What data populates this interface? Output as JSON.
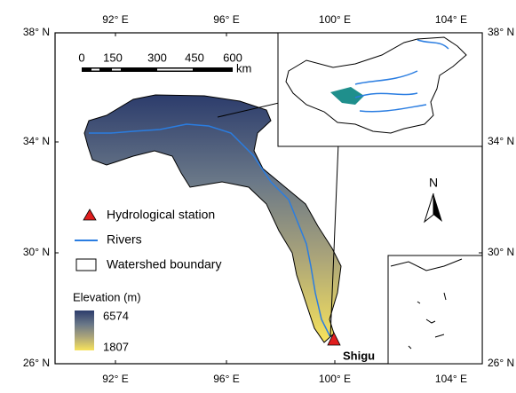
{
  "axes": {
    "top": [
      "92° E",
      "96° E",
      "100° E",
      "104° E"
    ],
    "bottom": [
      "92° E",
      "96° E",
      "100° E",
      "104° E"
    ],
    "left": [
      "38° N",
      "34° N",
      "30° N",
      "26° N"
    ],
    "right": [
      "38° N",
      "34° N",
      "30° N",
      "26° N"
    ]
  },
  "scale_bar": {
    "ticks": [
      "0",
      "150",
      "300",
      "450",
      "600"
    ],
    "unit": "km"
  },
  "legend": {
    "items": [
      "Hydrological station",
      "Rivers",
      "Watershed boundary"
    ],
    "elevation_title": "Elevation (m)",
    "elevation_max": "6574",
    "elevation_min": "1807"
  },
  "station_label": "Shigu",
  "north": "N"
}
